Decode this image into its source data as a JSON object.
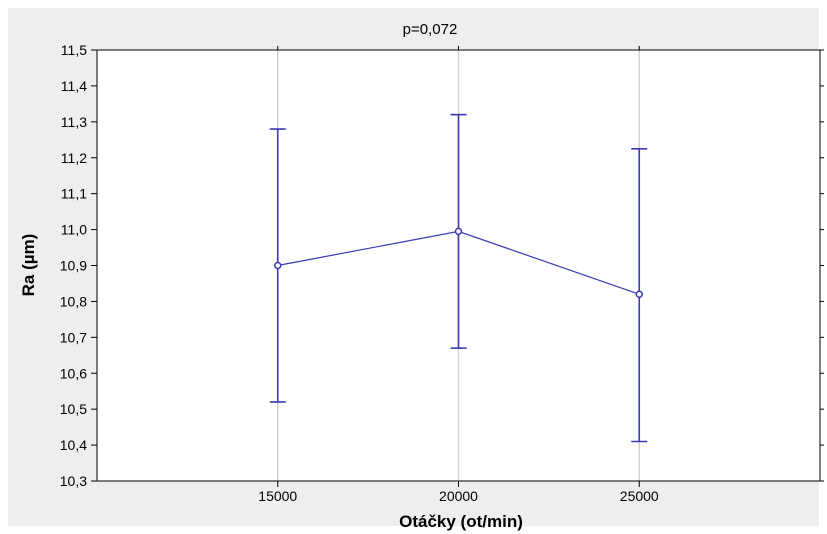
{
  "chart_data": {
    "type": "line",
    "title": "p=0,072",
    "xlabel": "Otáčky (ot/min)",
    "ylabel": "Ra (µm)",
    "categories": [
      "15000",
      "20000",
      "25000"
    ],
    "x_values": [
      15000,
      20000,
      25000
    ],
    "xlim": [
      10000,
      30000
    ],
    "ylim": [
      10.3,
      11.5
    ],
    "y_ticks": [
      10.3,
      10.4,
      10.5,
      10.6,
      10.7,
      10.8,
      10.9,
      11.0,
      11.1,
      11.2,
      11.3,
      11.4,
      11.5
    ],
    "y_tick_labels": [
      "10,3",
      "10,4",
      "10,5",
      "10,6",
      "10,7",
      "10,8",
      "10,9",
      "11,0",
      "11,1",
      "11,2",
      "11,3",
      "11,4",
      "11,5"
    ],
    "grid": "vertical",
    "series": [
      {
        "values": [
          10.9,
          10.995,
          10.82
        ],
        "lower": [
          10.52,
          10.67,
          10.41
        ],
        "upper": [
          11.28,
          11.32,
          11.225
        ],
        "color": "#3a3ab4"
      }
    ]
  }
}
